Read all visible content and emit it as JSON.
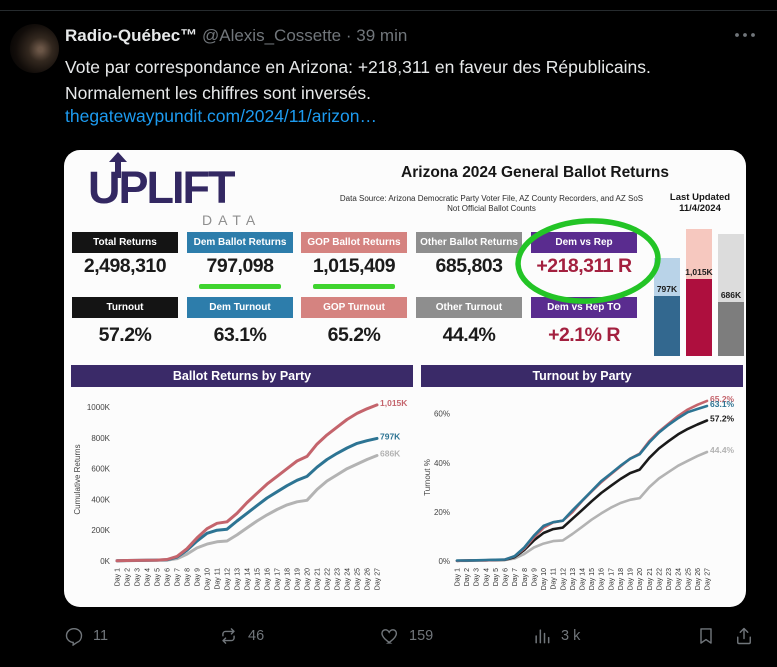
{
  "tweet": {
    "author": "Radio-Québec™",
    "handle": "@Alexis_Cossette",
    "dot": "·",
    "time": "39 min",
    "line1": "Vote par correspondance en Arizona: +218,311 en faveur des Républicains.",
    "line2": "Normalement les chiffres sont inversés.",
    "link": "thegatewaypundit.com/2024/11/arizon…",
    "replies": "11",
    "reposts": "46",
    "likes": "159",
    "views": "3 k"
  },
  "dashboard": {
    "brand": "UPLIFT",
    "brand_sub": "DATA",
    "title": "Arizona 2024 General Ballot Returns",
    "source1": "Data Source: Arizona Democratic Party Voter File, AZ County Recorders, and AZ SoS",
    "source2": "Not Official Ballot Counts",
    "updated_label": "Last Updated",
    "updated_date": "11/4/2024",
    "highlight_color": "#23c426",
    "underline_color": "#3fd42f",
    "returns_row": [
      {
        "label": "Total Returns",
        "value": "2,498,310",
        "chip_color": "#141414",
        "value_color": "#1b1b1b",
        "underline": false
      },
      {
        "label": "Dem Ballot Returns",
        "value": "797,098",
        "chip_color": "#2d7dab",
        "value_color": "#1b1b1b",
        "underline": true
      },
      {
        "label": "GOP Ballot Returns",
        "value": "1,015,409",
        "chip_color": "#d58380",
        "value_color": "#1b1b1b",
        "underline": true
      },
      {
        "label": "Other Ballot Returns",
        "value": "685,803",
        "chip_color": "#8e8e8e",
        "value_color": "#1b1b1b",
        "underline": false
      },
      {
        "label": "Dem vs Rep",
        "value": "+218,311 R",
        "chip_color": "#5a2c8f",
        "value_color": "#a3203f",
        "underline": false
      }
    ],
    "turnout_row": [
      {
        "label": "Turnout",
        "value": "57.2%",
        "chip_color": "#141414",
        "value_color": "#1b1b1b",
        "underline": false
      },
      {
        "label": "Dem Turnout",
        "value": "63.1%",
        "chip_color": "#2d7dab",
        "value_color": "#1b1b1b",
        "underline": false
      },
      {
        "label": "GOP Turnout",
        "value": "65.2%",
        "chip_color": "#d58380",
        "value_color": "#1b1b1b",
        "underline": false
      },
      {
        "label": "Other Turnout",
        "value": "44.4%",
        "chip_color": "#8e8e8e",
        "value_color": "#1b1b1b",
        "underline": false
      },
      {
        "label": "Dem vs Rep TO",
        "value": "+2.1% R",
        "chip_color": "#5a2c8f",
        "value_color": "#a3203f",
        "underline": false
      }
    ],
    "mini_bars": [
      {
        "label": "797K",
        "total_h": 98,
        "fill_pct": 61,
        "light": "#b9d3e8",
        "dark": "#33688f"
      },
      {
        "label": "1,015K",
        "total_h": 127,
        "fill_pct": 61,
        "light": "#f6c8bf",
        "dark": "#ae0f3e"
      },
      {
        "label": "686K",
        "total_h": 122,
        "fill_pct": 44,
        "light": "#dcdcdc",
        "dark": "#7d7d7d"
      }
    ]
  },
  "chart_data": [
    {
      "type": "line",
      "title": "Ballot Returns by Party",
      "xlabel": "",
      "ylabel": "Cumulative Returns",
      "ylim": [
        0,
        1060
      ],
      "grid": false,
      "legend_position": "end-labels",
      "categories": [
        "Day 1",
        "Day 2",
        "Day 3",
        "Day 4",
        "Day 5",
        "Day 6",
        "Day 7",
        "Day 8",
        "Day 9",
        "Day 10",
        "Day 11",
        "Day 12",
        "Day 13",
        "Day 14",
        "Day 15",
        "Day 16",
        "Day 17",
        "Day 18",
        "Day 19",
        "Day 20",
        "Day 21",
        "Day 22",
        "Day 23",
        "Day 24",
        "Day 25",
        "Day 26",
        "Day 27"
      ],
      "yticks": [
        {
          "v": 0,
          "label": "0K"
        },
        {
          "v": 200,
          "label": "200K"
        },
        {
          "v": 400,
          "label": "400K"
        },
        {
          "v": 600,
          "label": "600K"
        },
        {
          "v": 800,
          "label": "800K"
        },
        {
          "v": 1000,
          "label": "1000K"
        }
      ],
      "series": [
        {
          "name": "Other",
          "color": "#b3b3b3",
          "end_label": "686K",
          "values": [
            1,
            2,
            3,
            4,
            5,
            6,
            15,
            45,
            85,
            110,
            125,
            130,
            170,
            215,
            260,
            300,
            335,
            365,
            385,
            395,
            465,
            520,
            560,
            600,
            630,
            660,
            686
          ]
        },
        {
          "name": "Dem",
          "color": "#2d7493",
          "end_label": "797K",
          "values": [
            2,
            3,
            4,
            5,
            6,
            8,
            25,
            70,
            130,
            180,
            200,
            207,
            260,
            310,
            360,
            410,
            450,
            490,
            525,
            550,
            610,
            660,
            700,
            735,
            765,
            782,
            797
          ]
        },
        {
          "name": "GOP",
          "color": "#c4646c",
          "end_label": "1,015K",
          "values": [
            2,
            3,
            4,
            5,
            6,
            10,
            30,
            80,
            150,
            210,
            245,
            255,
            310,
            380,
            440,
            500,
            550,
            600,
            650,
            680,
            760,
            820,
            870,
            920,
            960,
            990,
            1015
          ]
        }
      ]
    },
    {
      "type": "line",
      "title": "Turnout by Party",
      "xlabel": "",
      "ylabel": "Turnout %",
      "ylim": [
        0,
        68
      ],
      "grid": false,
      "legend_position": "end-labels",
      "categories": [
        "Day 1",
        "Day 2",
        "Day 3",
        "Day 4",
        "Day 5",
        "Day 6",
        "Day 7",
        "Day 8",
        "Day 9",
        "Day 10",
        "Day 11",
        "Day 12",
        "Day 13",
        "Day 14",
        "Day 15",
        "Day 16",
        "Day 17",
        "Day 18",
        "Day 19",
        "Day 20",
        "Day 21",
        "Day 22",
        "Day 23",
        "Day 24",
        "Day 25",
        "Day 26",
        "Day 27"
      ],
      "yticks": [
        {
          "v": 0,
          "label": "0%"
        },
        {
          "v": 20,
          "label": "20%"
        },
        {
          "v": 40,
          "label": "40%"
        },
        {
          "v": 60,
          "label": "60%"
        }
      ],
      "series": [
        {
          "name": "Other",
          "color": "#b3b3b3",
          "end_label": "44.4%",
          "values": [
            0.1,
            0.1,
            0.2,
            0.3,
            0.3,
            0.4,
            1.0,
            2.9,
            5.5,
            7.1,
            8.1,
            8.4,
            11.0,
            13.9,
            16.8,
            19.4,
            21.7,
            23.6,
            24.9,
            25.6,
            30.1,
            33.6,
            36.2,
            38.8,
            40.8,
            42.7,
            44.4
          ]
        },
        {
          "name": "Total",
          "color": "#1a1a1a",
          "end_label": "57.2%",
          "values": [
            0.1,
            0.2,
            0.3,
            0.3,
            0.4,
            0.5,
            1.6,
            4.5,
            8.4,
            11.4,
            13.0,
            13.6,
            17.2,
            20.7,
            24.3,
            27.7,
            30.6,
            33.4,
            35.8,
            37.2,
            42.0,
            45.8,
            48.8,
            51.6,
            53.8,
            55.6,
            57.2
          ]
        },
        {
          "name": "GOP",
          "color": "#c4646c",
          "end_label": "65.2%",
          "values": [
            0.1,
            0.2,
            0.3,
            0.3,
            0.4,
            0.6,
            1.9,
            5.1,
            9.6,
            13.5,
            15.7,
            16.4,
            19.9,
            24.4,
            28.3,
            32.1,
            35.3,
            38.5,
            41.7,
            43.7,
            48.8,
            52.7,
            55.9,
            59.1,
            61.7,
            63.6,
            65.2
          ]
        },
        {
          "name": "Dem",
          "color": "#2d7493",
          "end_label": "63.1%",
          "values": [
            0.2,
            0.2,
            0.3,
            0.4,
            0.5,
            0.6,
            2.0,
            5.5,
            10.3,
            14.3,
            15.8,
            16.4,
            20.6,
            24.5,
            28.5,
            32.5,
            35.6,
            38.8,
            41.6,
            43.5,
            48.3,
            52.3,
            55.4,
            58.2,
            60.6,
            61.9,
            63.1
          ]
        }
      ]
    }
  ]
}
